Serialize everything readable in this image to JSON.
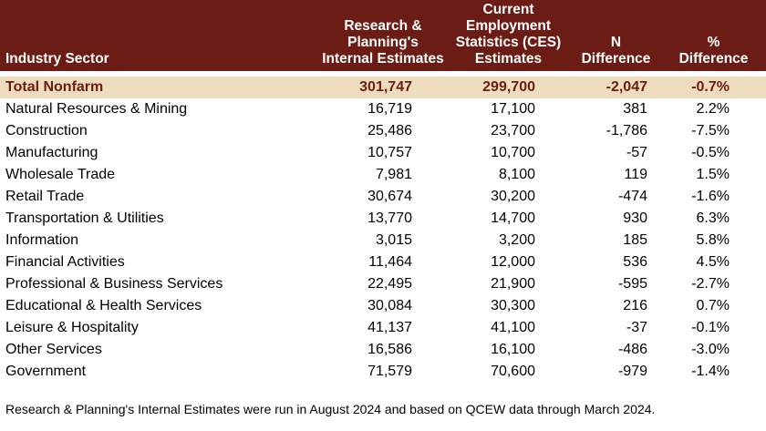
{
  "header": {
    "sector": "Industry Sector",
    "internal": [
      "Research &",
      "Planning's",
      "Internal Estimates"
    ],
    "ces": [
      "Current",
      "Employment",
      "Statistics (CES)",
      "Estimates"
    ],
    "n_diff": [
      "N",
      "Difference"
    ],
    "pct_diff": [
      "%",
      "Difference"
    ]
  },
  "total": {
    "sector": "Total Nonfarm",
    "internal": "301,747",
    "ces": "299,700",
    "n_diff": "-2,047",
    "pct_diff": "-0.7%"
  },
  "rows": [
    {
      "sector": "Natural Resources & Mining",
      "internal": "16,719",
      "ces": "17,100",
      "n_diff": "381",
      "pct_diff": "2.2%"
    },
    {
      "sector": "Construction",
      "internal": "25,486",
      "ces": "23,700",
      "n_diff": "-1,786",
      "pct_diff": "-7.5%"
    },
    {
      "sector": "Manufacturing",
      "internal": "10,757",
      "ces": "10,700",
      "n_diff": "-57",
      "pct_diff": "-0.5%"
    },
    {
      "sector": "Wholesale Trade",
      "internal": "7,981",
      "ces": "8,100",
      "n_diff": "119",
      "pct_diff": "1.5%"
    },
    {
      "sector": "Retail Trade",
      "internal": "30,674",
      "ces": "30,200",
      "n_diff": "-474",
      "pct_diff": "-1.6%"
    },
    {
      "sector": "Transportation & Utilities",
      "internal": "13,770",
      "ces": "14,700",
      "n_diff": "930",
      "pct_diff": "6.3%"
    },
    {
      "sector": "Information",
      "internal": "3,015",
      "ces": "3,200",
      "n_diff": "185",
      "pct_diff": "5.8%"
    },
    {
      "sector": "Financial Activities",
      "internal": "11,464",
      "ces": "12,000",
      "n_diff": "536",
      "pct_diff": "4.5%"
    },
    {
      "sector": "Professional & Business Services",
      "internal": "22,495",
      "ces": "21,900",
      "n_diff": "-595",
      "pct_diff": "-2.7%"
    },
    {
      "sector": "Educational & Health Services",
      "internal": "30,084",
      "ces": "30,300",
      "n_diff": "216",
      "pct_diff": "0.7%"
    },
    {
      "sector": "Leisure & Hospitality",
      "internal": "41,137",
      "ces": "41,100",
      "n_diff": "-37",
      "pct_diff": "-0.1%"
    },
    {
      "sector": "Other Services",
      "internal": "16,586",
      "ces": "16,100",
      "n_diff": "-486",
      "pct_diff": "-3.0%"
    },
    {
      "sector": "Government",
      "internal": "71,579",
      "ces": "70,600",
      "n_diff": "-979",
      "pct_diff": "-1.4%"
    }
  ],
  "footnote": "Research & Planning's Internal Estimates were run in August 2024 and based on QCEW data through March 2024.",
  "colors": {
    "header_bg": "#6b1c14",
    "total_bg": "#eddcbd",
    "total_text": "#6b1c14"
  }
}
